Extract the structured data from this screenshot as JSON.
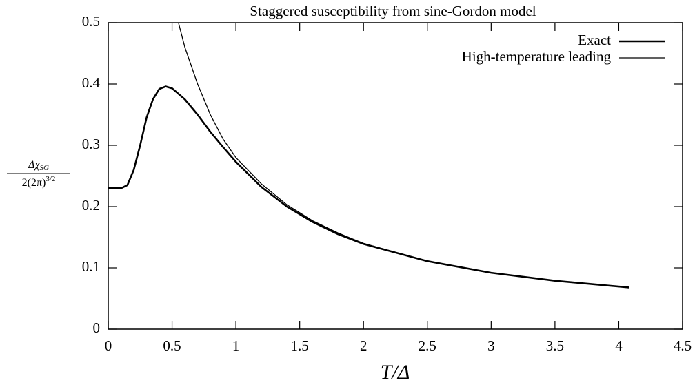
{
  "chart_data": {
    "type": "line",
    "title": "Staggered susceptibility from sine-Gordon model",
    "xlabel": "T/Δ",
    "ylabel": {
      "numerator": "Δχ",
      "numerator_sub": "SG",
      "denominator": "2(2π)",
      "denominator_sup": "3/2"
    },
    "xlim": [
      0,
      4.5
    ],
    "xticks": [
      0,
      0.5,
      1,
      1.5,
      2,
      2.5,
      3,
      3.5,
      4,
      4.5
    ],
    "ylim": [
      0,
      0.5
    ],
    "yticks": [
      0,
      0.1,
      0.2,
      0.3,
      0.4,
      0.5
    ],
    "grid": false,
    "legend": "upper right",
    "series": [
      {
        "name": "Exact",
        "color": "#000000",
        "x": [
          0,
          0.1,
          0.15,
          0.2,
          0.25,
          0.3,
          0.35,
          0.4,
          0.45,
          0.5,
          0.6,
          0.7,
          0.8,
          0.9,
          1.0,
          1.2,
          1.4,
          1.6,
          1.8,
          2.0,
          2.5,
          3.0,
          3.5,
          4.08
        ],
        "values": [
          0.23,
          0.23,
          0.235,
          0.26,
          0.3,
          0.345,
          0.375,
          0.392,
          0.396,
          0.393,
          0.375,
          0.35,
          0.322,
          0.297,
          0.273,
          0.232,
          0.2,
          0.175,
          0.155,
          0.139,
          0.111,
          0.092,
          0.079,
          0.068
        ]
      },
      {
        "name": "High-temperature leading",
        "color": "#000000",
        "x": [
          0.55,
          0.6,
          0.7,
          0.8,
          0.9,
          1.0,
          1.2,
          1.4,
          1.6,
          1.8,
          2.0,
          2.5,
          3.0,
          3.5,
          4.08
        ],
        "values": [
          0.5,
          0.46,
          0.4,
          0.35,
          0.31,
          0.28,
          0.237,
          0.203,
          0.177,
          0.157,
          0.14,
          0.111,
          0.092,
          0.079,
          0.068
        ]
      }
    ]
  }
}
